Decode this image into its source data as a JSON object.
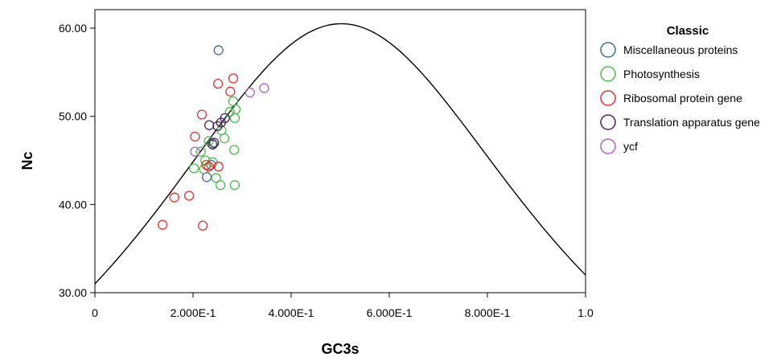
{
  "chart_data": {
    "type": "scatter",
    "title": "",
    "xlabel": "GC3s",
    "ylabel": "Nc",
    "xlim": [
      0,
      1.0
    ],
    "ylim": [
      30,
      61
    ],
    "grid": false,
    "legend_placement": "right",
    "legend_title": "Classic",
    "x_ticks": [
      0,
      0.2,
      0.4,
      0.6,
      0.8,
      1.0
    ],
    "x_tick_labels": [
      "0",
      "2.000E-1",
      "4.000E-1",
      "6.000E-1",
      "8.000E-1",
      "1.0"
    ],
    "y_ticks": [
      30,
      40,
      50,
      60
    ],
    "y_tick_labels": [
      "30.00",
      "40.00",
      "50.00",
      "60.00"
    ],
    "series": [
      {
        "name": "Miscellaneous proteins",
        "color": "#3a6aa0",
        "points": [
          [
            0.252,
            57.5
          ],
          [
            0.228,
            43.1
          ],
          [
            0.237,
            44.5
          ]
        ]
      },
      {
        "name": "Photosynthesis",
        "color": "#4cbb4c",
        "points": [
          [
            0.282,
            51.7
          ],
          [
            0.287,
            50.8
          ],
          [
            0.275,
            50.5
          ],
          [
            0.285,
            49.8
          ],
          [
            0.258,
            48.4
          ],
          [
            0.264,
            47.5
          ],
          [
            0.232,
            47.2
          ],
          [
            0.239,
            46.9
          ],
          [
            0.216,
            46.0
          ],
          [
            0.284,
            46.2
          ],
          [
            0.225,
            45.0
          ],
          [
            0.24,
            44.8
          ],
          [
            0.202,
            44.1
          ],
          [
            0.222,
            44.0
          ],
          [
            0.247,
            43.0
          ],
          [
            0.256,
            42.2
          ],
          [
            0.285,
            42.2
          ]
        ]
      },
      {
        "name": "Ribosomal protein gene",
        "color": "#e83030",
        "points": [
          [
            0.282,
            54.3
          ],
          [
            0.251,
            53.7
          ],
          [
            0.276,
            52.8
          ],
          [
            0.218,
            50.2
          ],
          [
            0.204,
            47.7
          ],
          [
            0.227,
            44.5
          ],
          [
            0.232,
            44.3
          ],
          [
            0.252,
            44.3
          ],
          [
            0.162,
            40.8
          ],
          [
            0.192,
            41.0
          ],
          [
            0.138,
            37.7
          ],
          [
            0.22,
            37.6
          ]
        ]
      },
      {
        "name": "Translation apparatus gene",
        "color": "#4a2060",
        "points": [
          [
            0.265,
            49.8
          ],
          [
            0.257,
            49.3
          ],
          [
            0.25,
            48.9
          ],
          [
            0.233,
            49.0
          ],
          [
            0.24,
            46.8
          ],
          [
            0.243,
            47.0
          ]
        ]
      },
      {
        "name": "ycf",
        "color": "#b060c0",
        "points": [
          [
            0.345,
            53.2
          ],
          [
            0.316,
            52.7
          ],
          [
            0.204,
            46.0
          ]
        ]
      }
    ],
    "expected_curve": {
      "formula": "Nc = 2 + GC3s + 29 / (GC3s^2 + (1 - GC3s)^2)",
      "color": "#000000"
    }
  }
}
